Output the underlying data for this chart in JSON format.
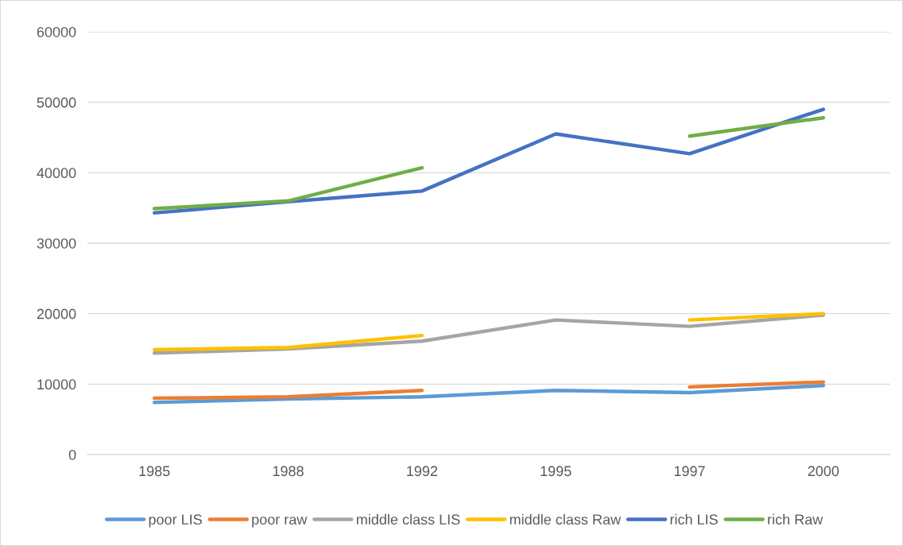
{
  "chart_data": {
    "type": "line",
    "categories": [
      "1985",
      "1988",
      "1992",
      "1995",
      "1997",
      "2000"
    ],
    "series": [
      {
        "name": "poor LIS",
        "color": "#5b9bd5",
        "values": [
          7400,
          7900,
          8200,
          9100,
          8800,
          9800
        ]
      },
      {
        "name": "poor raw",
        "color": "#ed7d31",
        "values": [
          8000,
          8200,
          9100,
          null,
          9600,
          10300
        ]
      },
      {
        "name": "middle class LIS",
        "color": "#a5a5a5",
        "values": [
          14400,
          15000,
          16100,
          19100,
          18200,
          19800
        ]
      },
      {
        "name": "middle class Raw",
        "color": "#ffc000",
        "values": [
          14900,
          15200,
          16900,
          null,
          19100,
          20000
        ]
      },
      {
        "name": "rich LIS",
        "color": "#4472c4",
        "values": [
          34300,
          35900,
          37400,
          45500,
          42700,
          49000
        ]
      },
      {
        "name": "rich Raw",
        "color": "#70ad47",
        "values": [
          34900,
          36000,
          40700,
          null,
          45200,
          47800
        ]
      }
    ],
    "ylim": [
      0,
      60000
    ],
    "yticks": [
      0,
      10000,
      20000,
      30000,
      40000,
      50000,
      60000
    ],
    "grid": "y",
    "legend": "bottom",
    "marker": "none",
    "line_style": "solid"
  }
}
